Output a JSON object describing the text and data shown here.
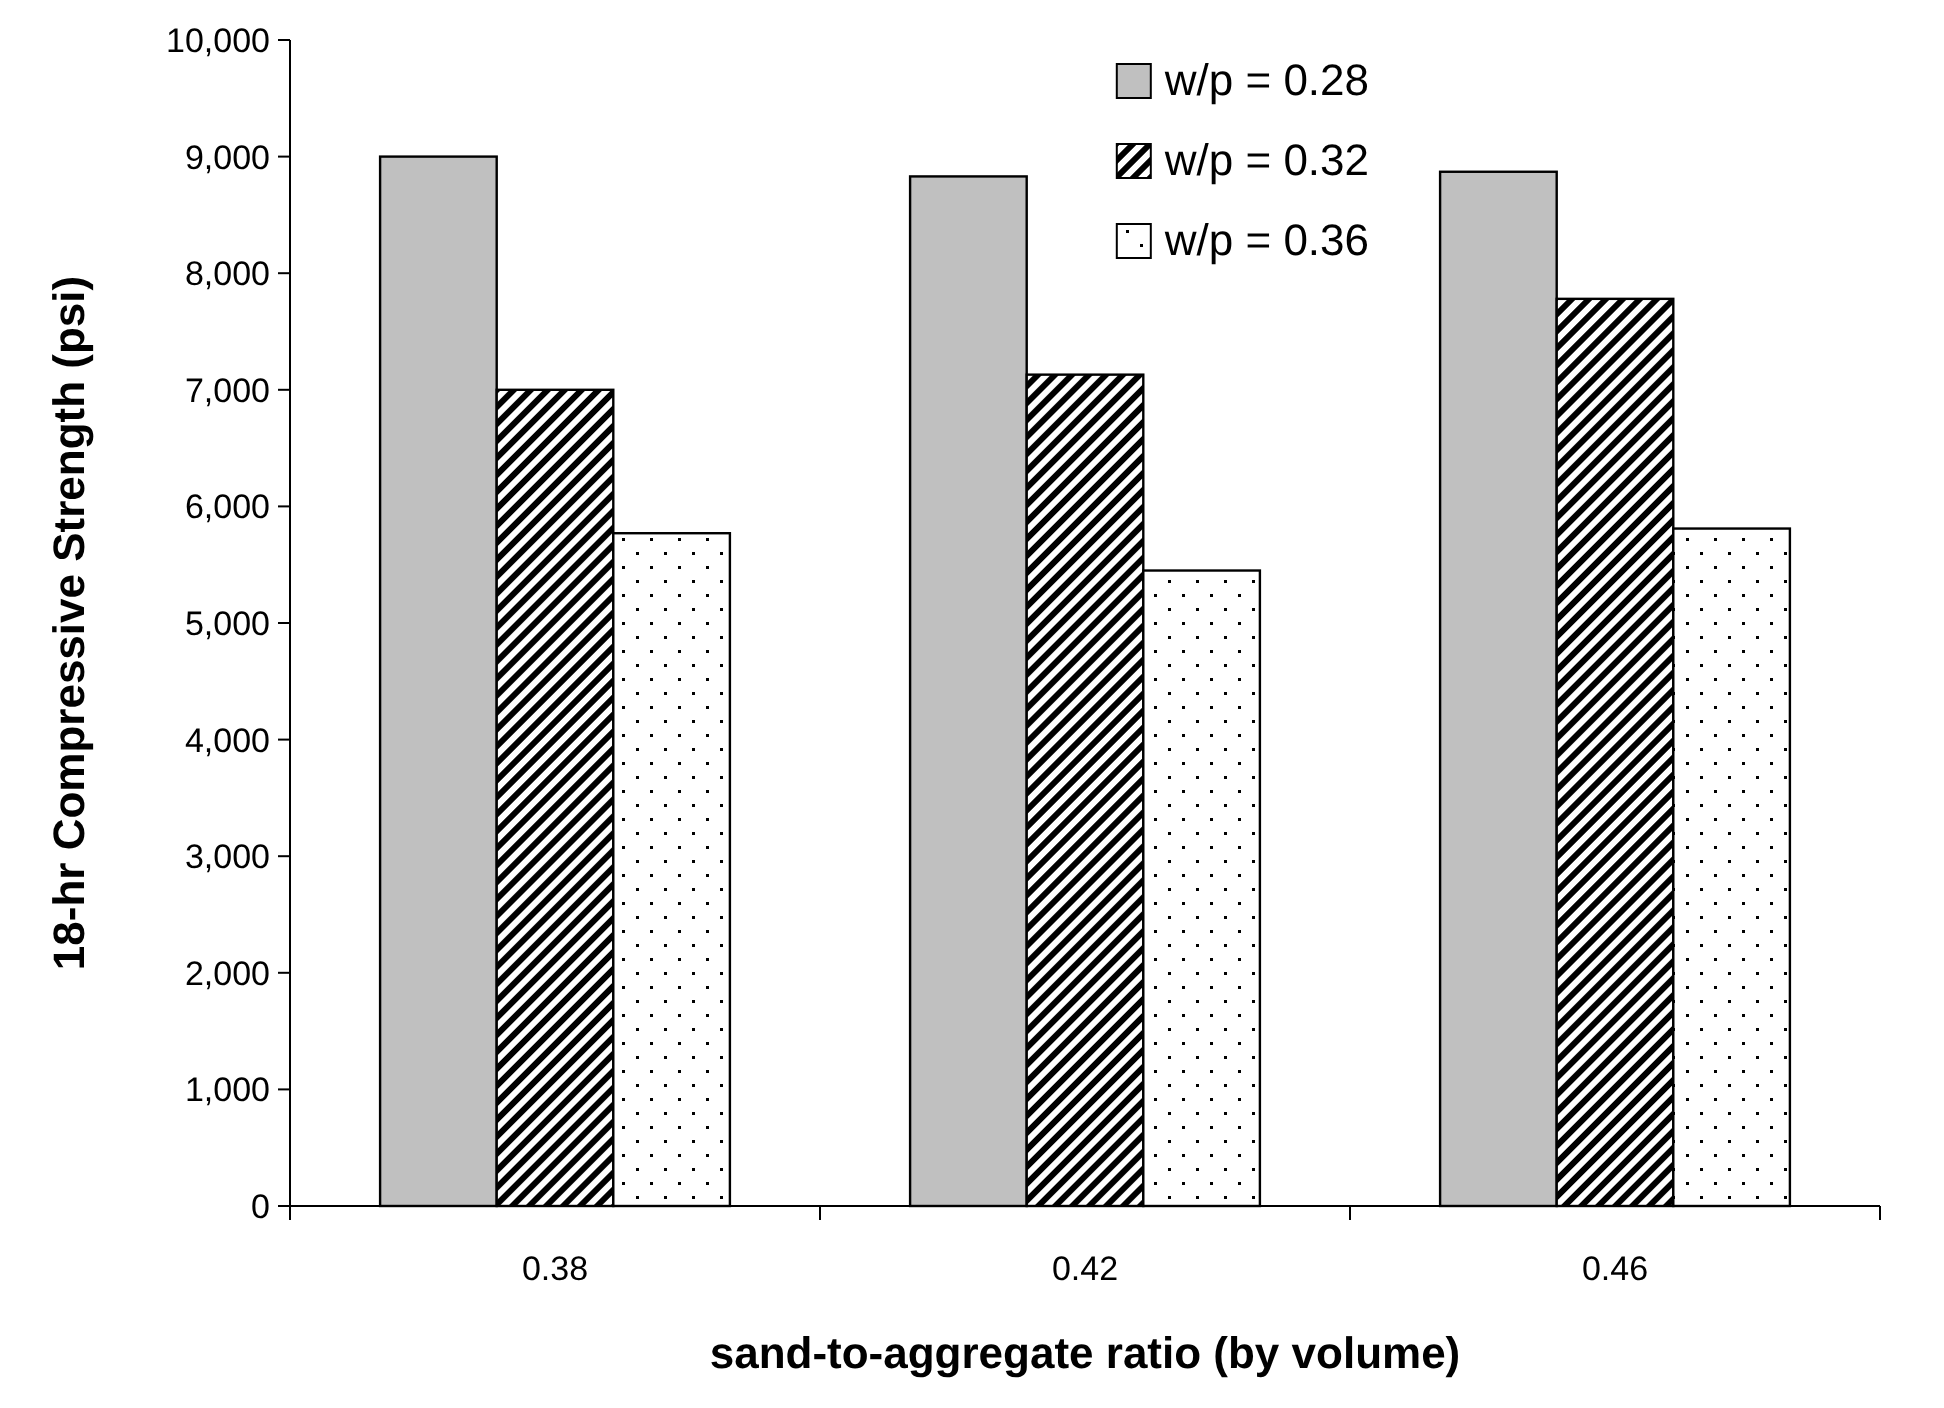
{
  "chart_data": {
    "type": "bar",
    "xlabel": "sand-to-aggregate ratio (by volume)",
    "ylabel": "18-hr Compressive Strength (psi)",
    "categories": [
      "0.38",
      "0.42",
      "0.46"
    ],
    "series": [
      {
        "name": "w/p = 0.28",
        "color": "#c0c0c0",
        "values": [
          9000,
          8830,
          8870
        ]
      },
      {
        "name": "w/p = 0.32",
        "color": "#000000",
        "values": [
          7000,
          7130,
          7780
        ]
      },
      {
        "name": "w/p = 0.36",
        "color": "#000000",
        "values": [
          5770,
          5450,
          5810
        ]
      }
    ],
    "ylim": [
      0,
      10000
    ],
    "yticks": [
      {
        "value": 0,
        "label": "0"
      },
      {
        "value": 1000,
        "label": "1,000"
      },
      {
        "value": 2000,
        "label": "2,000"
      },
      {
        "value": 3000,
        "label": "3,000"
      },
      {
        "value": 4000,
        "label": "4,000"
      },
      {
        "value": 5000,
        "label": "5,000"
      },
      {
        "value": 6000,
        "label": "6,000"
      },
      {
        "value": 7000,
        "label": "7,000"
      },
      {
        "value": 8000,
        "label": "8,000"
      },
      {
        "value": 9000,
        "label": "9,000"
      },
      {
        "value": 10000,
        "label": "10,000"
      }
    ],
    "legend": "top right",
    "grid": false
  }
}
